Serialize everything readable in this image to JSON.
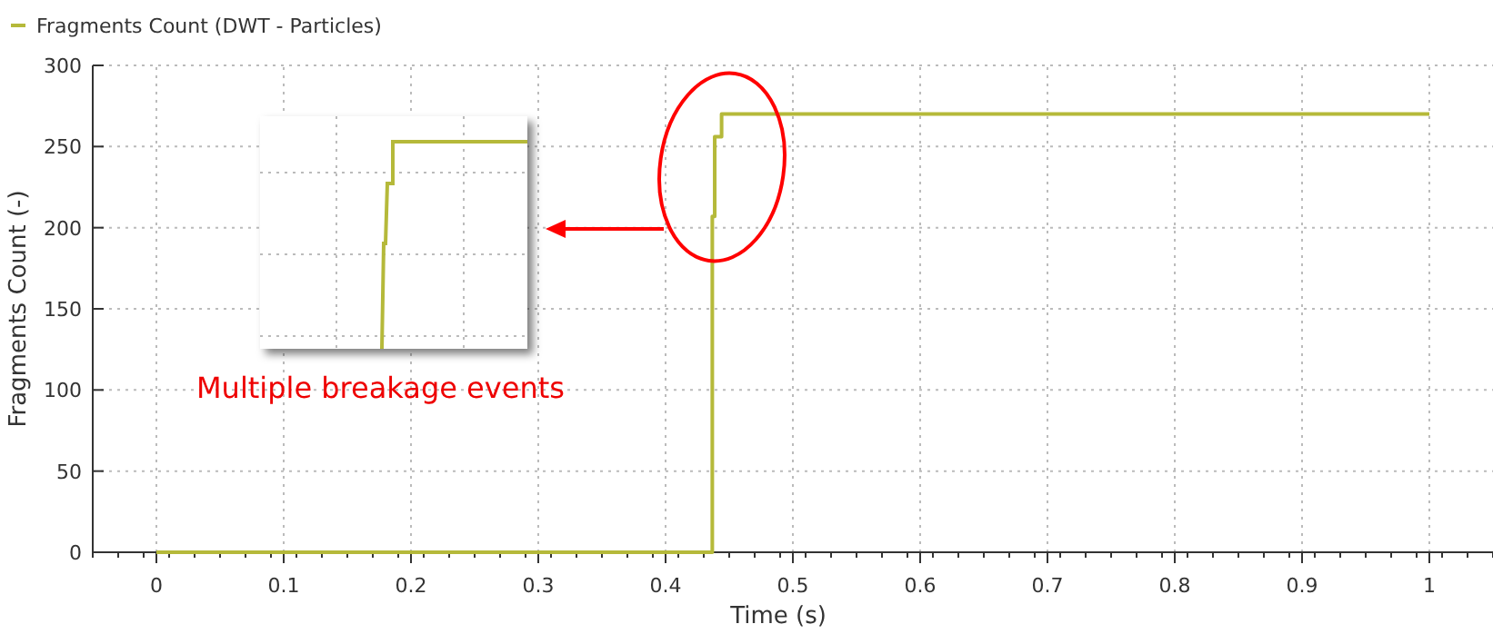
{
  "chart_data": {
    "type": "step",
    "xlabel": "Time (s)",
    "ylabel": "Fragments Count (-)",
    "x": [
      0,
      0.434,
      0.4367,
      0.4386,
      0.444,
      1
    ],
    "series": [
      {
        "name": "Fragments Count (DWT - Particles)",
        "color": "#b5b93a",
        "values": [
          0,
          0,
          207,
          256,
          270,
          270
        ]
      }
    ],
    "xlim": [
      -0.05,
      1.05
    ],
    "ylim": [
      0,
      300
    ],
    "xticks": [
      0,
      0.1,
      0.2,
      0.3,
      0.4,
      0.5,
      0.6,
      0.7,
      0.8,
      0.9,
      1
    ],
    "yticks": [
      0,
      50,
      100,
      150,
      200,
      250,
      300
    ],
    "grid": true,
    "legend": "top left",
    "line_style": "solid",
    "marker": "none",
    "annotations": [
      "Multiple breakage events"
    ]
  }
}
